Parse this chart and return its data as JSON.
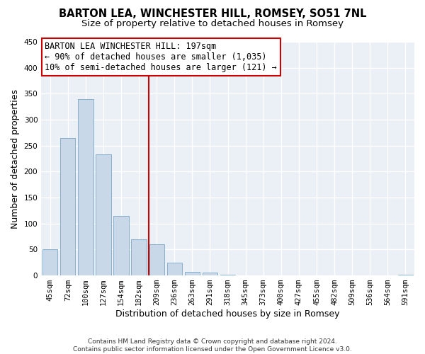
{
  "title1": "BARTON LEA, WINCHESTER HILL, ROMSEY, SO51 7NL",
  "title2": "Size of property relative to detached houses in Romsey",
  "xlabel": "Distribution of detached houses by size in Romsey",
  "ylabel": "Number of detached properties",
  "categories": [
    "45sqm",
    "72sqm",
    "100sqm",
    "127sqm",
    "154sqm",
    "182sqm",
    "209sqm",
    "236sqm",
    "263sqm",
    "291sqm",
    "318sqm",
    "345sqm",
    "373sqm",
    "400sqm",
    "427sqm",
    "455sqm",
    "482sqm",
    "509sqm",
    "536sqm",
    "564sqm",
    "591sqm"
  ],
  "values": [
    50,
    265,
    340,
    233,
    115,
    70,
    60,
    25,
    7,
    6,
    1,
    0,
    0,
    0,
    0,
    0,
    0,
    0,
    0,
    0,
    1
  ],
  "bar_color": "#c8d8e8",
  "bar_edge_color": "#7aa8c8",
  "annotation_line1": "BARTON LEA WINCHESTER HILL: 197sqm",
  "annotation_line2": "← 90% of detached houses are smaller (1,035)",
  "annotation_line3": "10% of semi-detached houses are larger (121) →",
  "annotation_box_color": "#ffffff",
  "annotation_box_edge": "#cc0000",
  "vline_color": "#cc0000",
  "vline_xindex": 5.56,
  "ylim": [
    0,
    450
  ],
  "yticks": [
    0,
    50,
    100,
    150,
    200,
    250,
    300,
    350,
    400,
    450
  ],
  "bg_color": "#eaf0f6",
  "grid_color": "#ffffff",
  "footer_line1": "Contains HM Land Registry data © Crown copyright and database right 2024.",
  "footer_line2": "Contains public sector information licensed under the Open Government Licence v3.0.",
  "title1_fontsize": 10.5,
  "title2_fontsize": 9.5,
  "xlabel_fontsize": 9,
  "ylabel_fontsize": 9,
  "annot_fontsize": 8.5,
  "tick_fontsize": 7.5,
  "footer_fontsize": 6.5
}
